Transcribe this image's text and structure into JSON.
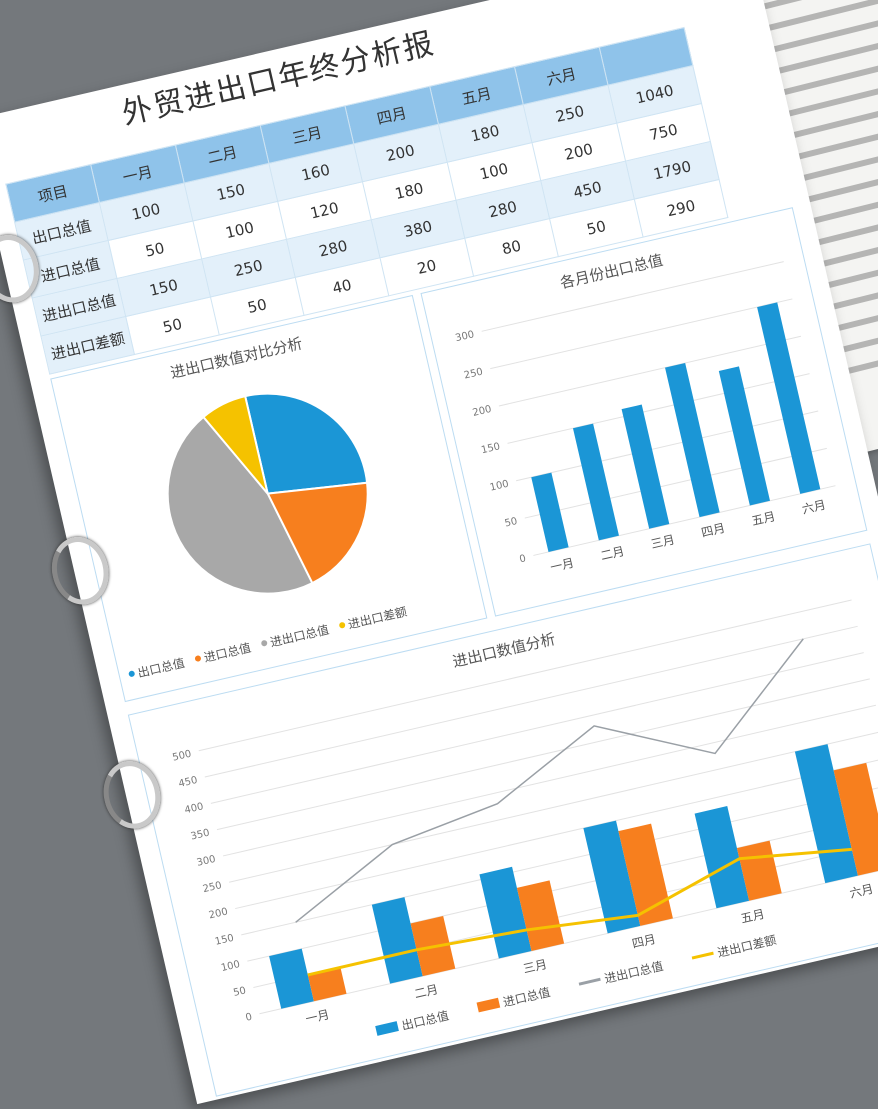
{
  "document": {
    "title": "外贸进出口年终分析报"
  },
  "table": {
    "headers": [
      "项目",
      "一月",
      "二月",
      "三月",
      "四月",
      "五月",
      "六月",
      ""
    ],
    "rows": [
      {
        "label": "出口总值",
        "values": [
          "100",
          "150",
          "160",
          "200",
          "180",
          "250",
          "1040"
        ]
      },
      {
        "label": "进口总值",
        "values": [
          "50",
          "100",
          "120",
          "180",
          "100",
          "200",
          "750"
        ]
      },
      {
        "label": "进出口总值",
        "values": [
          "150",
          "250",
          "280",
          "380",
          "280",
          "450",
          "1790"
        ]
      },
      {
        "label": "进出口差额",
        "values": [
          "50",
          "50",
          "40",
          "20",
          "80",
          "50",
          "290"
        ]
      }
    ]
  },
  "colors": {
    "blue": "#1b96d6",
    "orange": "#f77f1e",
    "gray": "#a8a8a8",
    "yellow": "#f5c200",
    "header": "#8fc3ea",
    "border": "#bcdcf2"
  },
  "chart_data": [
    {
      "type": "pie",
      "title": "进出口数值对比分析",
      "categories": [
        "出口总值",
        "进口总值",
        "进出口总值",
        "进出口差额"
      ],
      "values": [
        1040,
        750,
        1790,
        290
      ],
      "legend": "bottom"
    },
    {
      "type": "bar",
      "title": "各月份出口总值",
      "categories": [
        "一月",
        "二月",
        "三月",
        "四月",
        "五月",
        "六月"
      ],
      "values": [
        100,
        150,
        160,
        200,
        180,
        250
      ],
      "yticks": [
        "0",
        "50",
        "100",
        "150",
        "200",
        "250",
        "300"
      ],
      "ylim": [
        0,
        300
      ],
      "grid": true
    },
    {
      "type": "bar+line",
      "title": "进出口数值分析",
      "categories": [
        "一月",
        "二月",
        "三月",
        "四月",
        "五月",
        "六月"
      ],
      "series": [
        {
          "name": "出口总值",
          "type": "bar",
          "values": [
            100,
            150,
            160,
            200,
            180,
            250
          ]
        },
        {
          "name": "进口总值",
          "type": "bar",
          "values": [
            50,
            100,
            120,
            180,
            100,
            200
          ]
        },
        {
          "name": "进出口总值",
          "type": "line",
          "values": [
            150,
            250,
            280,
            380,
            280,
            450
          ]
        },
        {
          "name": "进出口差额",
          "type": "line",
          "values": [
            50,
            50,
            40,
            20,
            80,
            50
          ]
        }
      ],
      "yticks": [
        "0",
        "50",
        "100",
        "150",
        "200",
        "250",
        "300",
        "350",
        "400",
        "450",
        "500"
      ],
      "ylim": [
        0,
        500
      ],
      "grid": true,
      "legend": "bottom"
    }
  ]
}
